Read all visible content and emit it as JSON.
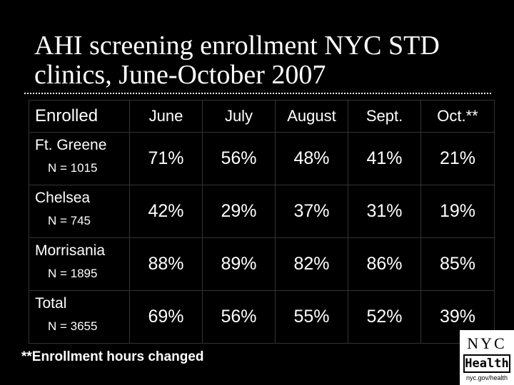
{
  "title": "AHI screening enrollment NYC STD clinics, June-October 2007",
  "table": {
    "corner_label": "Enrolled",
    "columns": [
      "June",
      "July",
      "August",
      "Sept.",
      "Oct.**"
    ],
    "rows": [
      {
        "site": "Ft. Greene",
        "n": "N = 1015",
        "values": [
          "71%",
          "56%",
          "48%",
          "41%",
          "21%"
        ]
      },
      {
        "site": "Chelsea",
        "n": "N = 745",
        "values": [
          "42%",
          "29%",
          "37%",
          "31%",
          "19%"
        ]
      },
      {
        "site": "Morrisania",
        "n": "N = 1895",
        "values": [
          "88%",
          "89%",
          "82%",
          "86%",
          "85%"
        ]
      },
      {
        "site": "Total",
        "n": "N = 3655",
        "values": [
          "69%",
          "56%",
          "55%",
          "52%",
          "39%"
        ]
      }
    ]
  },
  "footnote": "**Enrollment hours changed",
  "logo": {
    "line1": "NYC",
    "line2": "Health",
    "url": "nyc.gov/health"
  }
}
